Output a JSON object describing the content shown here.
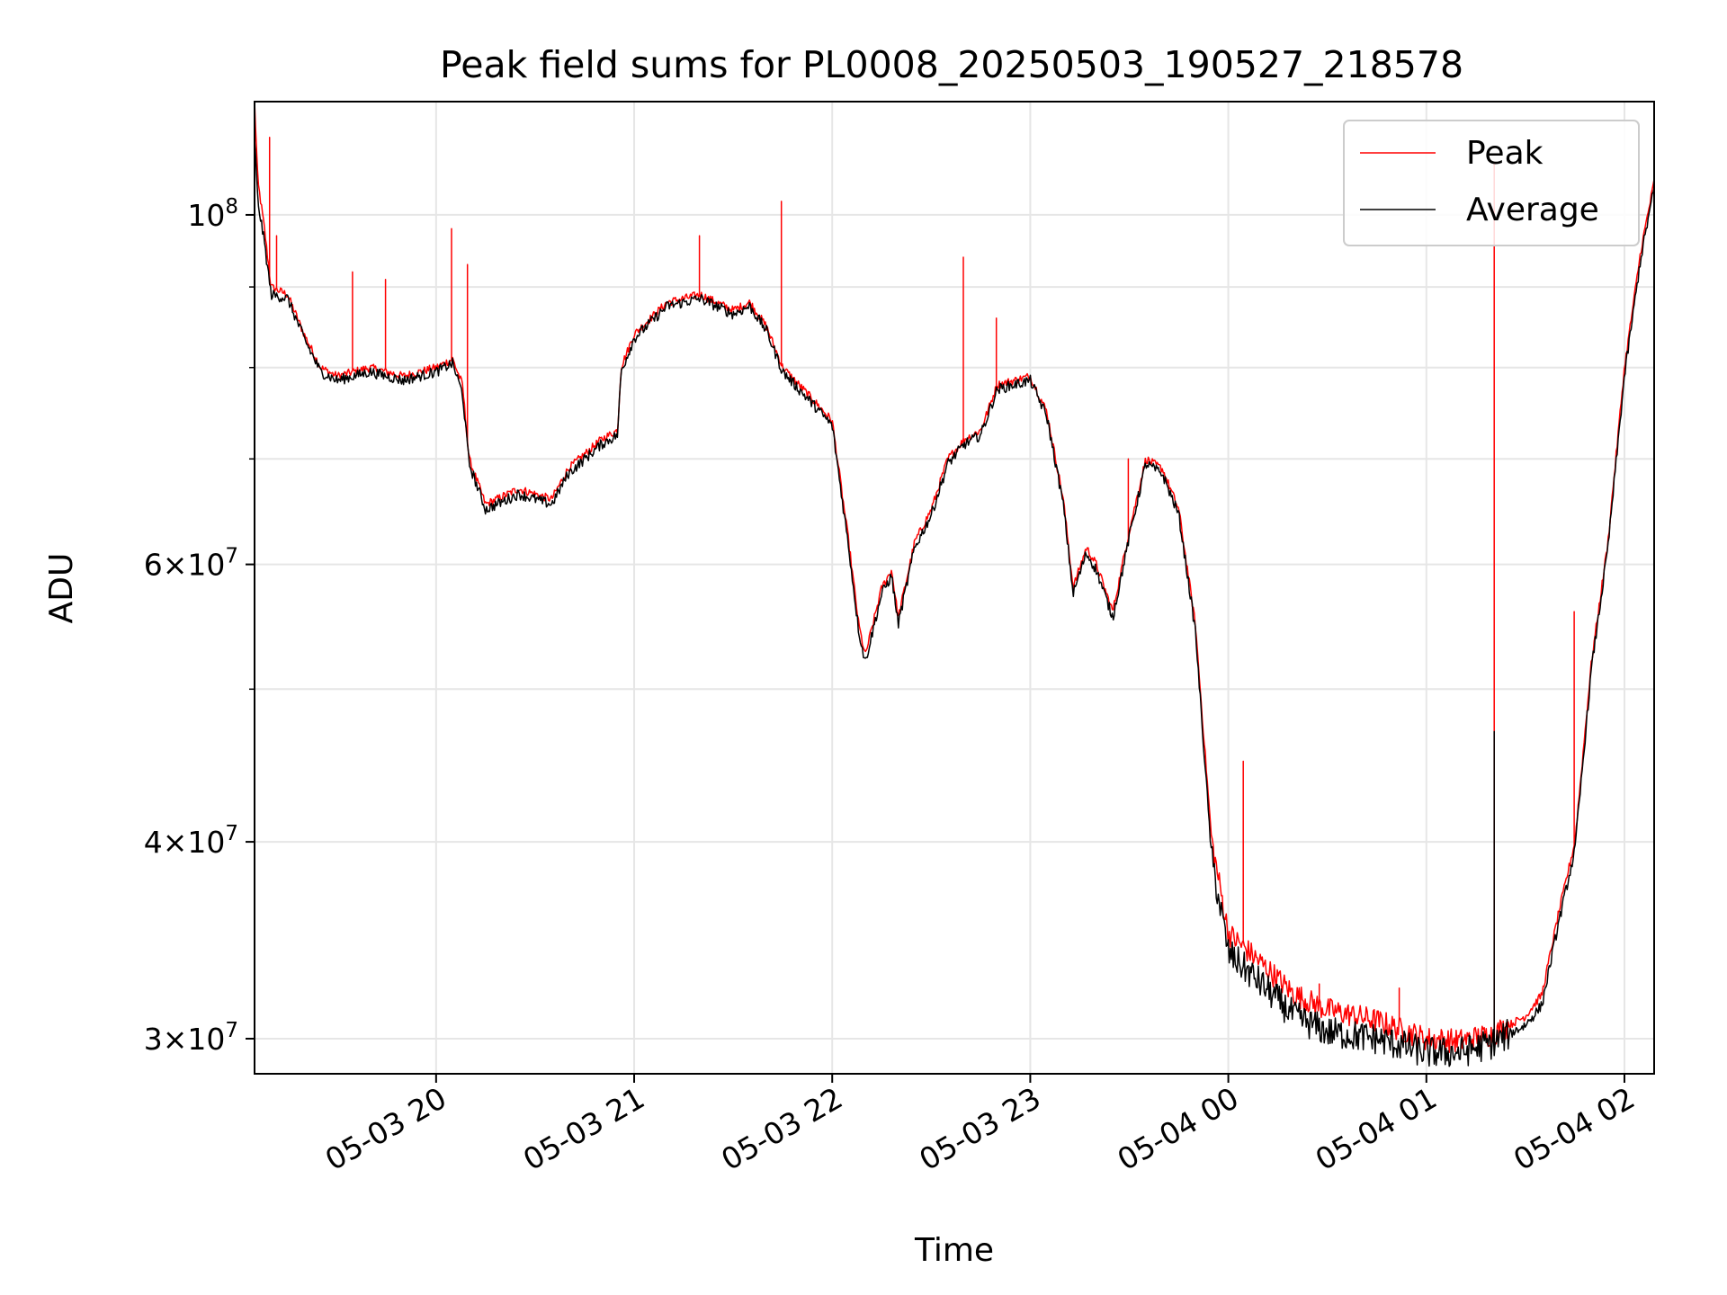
{
  "chart_data": {
    "type": "line",
    "title": "Peak field sums for PL0008_20250503_190527_218578",
    "xlabel": "Time",
    "ylabel": "ADU",
    "yscale": "log",
    "ylim": [
      28500000,
      118000000
    ],
    "xlim": [
      "2025-05-03 19:05",
      "2025-05-04 02:09"
    ],
    "grid": true,
    "legend_position": "upper right",
    "x_ticks": [
      {
        "value": "2025-05-03 20:00",
        "label": "05-03 20"
      },
      {
        "value": "2025-05-03 21:00",
        "label": "05-03 21"
      },
      {
        "value": "2025-05-03 22:00",
        "label": "05-03 22"
      },
      {
        "value": "2025-05-03 23:00",
        "label": "05-03 23"
      },
      {
        "value": "2025-05-04 00:00",
        "label": "05-04 00"
      },
      {
        "value": "2025-05-04 01:00",
        "label": "05-04 01"
      },
      {
        "value": "2025-05-04 02:00",
        "label": "05-04 02"
      }
    ],
    "y_ticks": [
      {
        "value": 30000000,
        "mant": "3",
        "exp": "7"
      },
      {
        "value": 40000000,
        "mant": "4",
        "exp": "7"
      },
      {
        "value": 60000000,
        "mant": "6",
        "exp": "7"
      },
      {
        "value": 100000000,
        "mant": "",
        "exp": "8"
      }
    ],
    "y_minor_ticks": [
      50000000,
      70000000,
      80000000,
      90000000
    ],
    "series": [
      {
        "name": "Peak",
        "color": "#ff0000",
        "points": [
          [
            "2025-05-03 19:05",
            118000000
          ],
          [
            "2025-05-03 19:06",
            105000000
          ],
          [
            "2025-05-03 19:08",
            98000000
          ],
          [
            "2025-05-03 19:10",
            90000000
          ],
          [
            "2025-05-03 19:15",
            89000000
          ],
          [
            "2025-05-03 19:20",
            84000000
          ],
          [
            "2025-05-03 19:25",
            80000000
          ],
          [
            "2025-05-03 19:30",
            79000000
          ],
          [
            "2025-05-03 19:40",
            80000000
          ],
          [
            "2025-05-03 19:50",
            79000000
          ],
          [
            "2025-05-03 20:00",
            80000000
          ],
          [
            "2025-05-03 20:05",
            81000000
          ],
          [
            "2025-05-03 20:08",
            78000000
          ],
          [
            "2025-05-03 20:10",
            70000000
          ],
          [
            "2025-05-03 20:15",
            65500000
          ],
          [
            "2025-05-03 20:25",
            67000000
          ],
          [
            "2025-05-03 20:35",
            66000000
          ],
          [
            "2025-05-03 20:40",
            69000000
          ],
          [
            "2025-05-03 20:50",
            72000000
          ],
          [
            "2025-05-03 20:55",
            73000000
          ],
          [
            "2025-05-03 20:56",
            80000000
          ],
          [
            "2025-05-03 21:00",
            84000000
          ],
          [
            "2025-05-03 21:10",
            88000000
          ],
          [
            "2025-05-03 21:20",
            89000000
          ],
          [
            "2025-05-03 21:30",
            87000000
          ],
          [
            "2025-05-03 21:35",
            88000000
          ],
          [
            "2025-05-03 21:40",
            85000000
          ],
          [
            "2025-05-03 21:45",
            80000000
          ],
          [
            "2025-05-03 21:55",
            76000000
          ],
          [
            "2025-05-03 22:00",
            74000000
          ],
          [
            "2025-05-03 22:05",
            62000000
          ],
          [
            "2025-05-03 22:08",
            55000000
          ],
          [
            "2025-05-03 22:10",
            52500000
          ],
          [
            "2025-05-03 22:15",
            58000000
          ],
          [
            "2025-05-03 22:18",
            59500000
          ],
          [
            "2025-05-03 22:20",
            55500000
          ],
          [
            "2025-05-03 22:25",
            62000000
          ],
          [
            "2025-05-03 22:30",
            65000000
          ],
          [
            "2025-05-03 22:35",
            70000000
          ],
          [
            "2025-05-03 22:40",
            72000000
          ],
          [
            "2025-05-03 22:45",
            73000000
          ],
          [
            "2025-05-03 22:50",
            78000000
          ],
          [
            "2025-05-03 23:00",
            79000000
          ],
          [
            "2025-05-03 23:05",
            75000000
          ],
          [
            "2025-05-03 23:10",
            66000000
          ],
          [
            "2025-05-03 23:13",
            58000000
          ],
          [
            "2025-05-03 23:17",
            61500000
          ],
          [
            "2025-05-03 23:20",
            60000000
          ],
          [
            "2025-05-03 23:25",
            56000000
          ],
          [
            "2025-05-03 23:30",
            63000000
          ],
          [
            "2025-05-03 23:35",
            70000000
          ],
          [
            "2025-05-03 23:40",
            69000000
          ],
          [
            "2025-05-03 23:45",
            65000000
          ],
          [
            "2025-05-03 23:50",
            55000000
          ],
          [
            "2025-05-03 23:55",
            40000000
          ],
          [
            "2025-05-04 00:00",
            35000000
          ],
          [
            "2025-05-04 00:10",
            33500000
          ],
          [
            "2025-05-04 00:20",
            32000000
          ],
          [
            "2025-05-04 00:30",
            31300000
          ],
          [
            "2025-05-04 00:45",
            30800000
          ],
          [
            "2025-05-04 01:00",
            30000000
          ],
          [
            "2025-05-04 01:10",
            29900000
          ],
          [
            "2025-05-04 01:20",
            30200000
          ],
          [
            "2025-05-04 01:30",
            31000000
          ],
          [
            "2025-05-04 01:35",
            32000000
          ],
          [
            "2025-05-04 01:40",
            36000000
          ],
          [
            "2025-05-04 01:45",
            40000000
          ],
          [
            "2025-05-04 01:50",
            52000000
          ],
          [
            "2025-05-04 01:55",
            62000000
          ],
          [
            "2025-05-04 02:00",
            80000000
          ],
          [
            "2025-05-04 02:05",
            95000000
          ],
          [
            "2025-05-04 02:09",
            105000000
          ]
        ],
        "spikes": [
          [
            "2025-05-03 19:10",
            112000000
          ],
          [
            "2025-05-03 19:12",
            97000000
          ],
          [
            "2025-05-03 19:35",
            92000000
          ],
          [
            "2025-05-03 19:45",
            91000000
          ],
          [
            "2025-05-03 20:05",
            98000000
          ],
          [
            "2025-05-03 20:10",
            93000000
          ],
          [
            "2025-05-03 21:20",
            97000000
          ],
          [
            "2025-05-03 21:45",
            102000000
          ],
          [
            "2025-05-03 22:40",
            94000000
          ],
          [
            "2025-05-03 22:50",
            86000000
          ],
          [
            "2025-05-03 23:30",
            70000000
          ],
          [
            "2025-05-04 00:05",
            45000000
          ],
          [
            "2025-05-04 00:28",
            32500000
          ],
          [
            "2025-05-04 00:52",
            32300000
          ],
          [
            "2025-05-04 01:21",
            108000000
          ],
          [
            "2025-05-04 01:45",
            56000000
          ]
        ]
      },
      {
        "name": "Average",
        "color": "#000000",
        "points": [
          [
            "2025-05-03 19:05",
            112000000
          ],
          [
            "2025-05-03 19:06",
            102000000
          ],
          [
            "2025-05-03 19:08",
            96000000
          ],
          [
            "2025-05-03 19:10",
            89000000
          ],
          [
            "2025-05-03 19:15",
            88500000
          ],
          [
            "2025-05-03 19:20",
            83500000
          ],
          [
            "2025-05-03 19:25",
            79500000
          ],
          [
            "2025-05-03 19:30",
            78500000
          ],
          [
            "2025-05-03 19:40",
            79500000
          ],
          [
            "2025-05-03 19:50",
            78500000
          ],
          [
            "2025-05-03 20:00",
            79500000
          ],
          [
            "2025-05-03 20:05",
            80500000
          ],
          [
            "2025-05-03 20:08",
            77000000
          ],
          [
            "2025-05-03 20:10",
            69500000
          ],
          [
            "2025-05-03 20:15",
            65000000
          ],
          [
            "2025-05-03 20:25",
            66500000
          ],
          [
            "2025-05-03 20:35",
            65500000
          ],
          [
            "2025-05-03 20:40",
            68500000
          ],
          [
            "2025-05-03 20:50",
            71500000
          ],
          [
            "2025-05-03 20:55",
            72500000
          ],
          [
            "2025-05-03 20:56",
            79500000
          ],
          [
            "2025-05-03 21:00",
            83500000
          ],
          [
            "2025-05-03 21:10",
            87500000
          ],
          [
            "2025-05-03 21:20",
            88500000
          ],
          [
            "2025-05-03 21:30",
            86500000
          ],
          [
            "2025-05-03 21:35",
            87500000
          ],
          [
            "2025-05-03 21:40",
            84500000
          ],
          [
            "2025-05-03 21:45",
            79500000
          ],
          [
            "2025-05-03 21:55",
            75500000
          ],
          [
            "2025-05-03 22:00",
            73500000
          ],
          [
            "2025-05-03 22:05",
            61500000
          ],
          [
            "2025-05-03 22:08",
            54500000
          ],
          [
            "2025-05-03 22:10",
            52000000
          ],
          [
            "2025-05-03 22:15",
            57500000
          ],
          [
            "2025-05-03 22:18",
            59000000
          ],
          [
            "2025-05-03 22:20",
            55000000
          ],
          [
            "2025-05-03 22:25",
            61500000
          ],
          [
            "2025-05-03 22:30",
            64500000
          ],
          [
            "2025-05-03 22:35",
            69500000
          ],
          [
            "2025-05-03 22:40",
            71500000
          ],
          [
            "2025-05-03 22:45",
            72500000
          ],
          [
            "2025-05-03 22:50",
            77500000
          ],
          [
            "2025-05-03 23:00",
            78500000
          ],
          [
            "2025-05-03 23:05",
            74500000
          ],
          [
            "2025-05-03 23:10",
            65500000
          ],
          [
            "2025-05-03 23:13",
            57500000
          ],
          [
            "2025-05-03 23:17",
            61000000
          ],
          [
            "2025-05-03 23:20",
            59500000
          ],
          [
            "2025-05-03 23:25",
            55500000
          ],
          [
            "2025-05-03 23:30",
            62500000
          ],
          [
            "2025-05-03 23:35",
            69500000
          ],
          [
            "2025-05-03 23:40",
            68500000
          ],
          [
            "2025-05-03 23:45",
            64500000
          ],
          [
            "2025-05-03 23:50",
            54500000
          ],
          [
            "2025-05-03 23:55",
            39000000
          ],
          [
            "2025-05-04 00:00",
            34000000
          ],
          [
            "2025-05-04 00:10",
            32500000
          ],
          [
            "2025-05-04 00:20",
            31000000
          ],
          [
            "2025-05-04 00:30",
            30300000
          ],
          [
            "2025-05-04 00:45",
            30000000
          ],
          [
            "2025-05-04 01:00",
            29400000
          ],
          [
            "2025-05-04 01:10",
            29400000
          ],
          [
            "2025-05-04 01:20",
            29800000
          ],
          [
            "2025-05-04 01:30",
            30600000
          ],
          [
            "2025-05-04 01:35",
            31500000
          ],
          [
            "2025-05-04 01:40",
            35500000
          ],
          [
            "2025-05-04 01:45",
            39500000
          ],
          [
            "2025-05-04 01:50",
            51500000
          ],
          [
            "2025-05-04 01:55",
            61500000
          ],
          [
            "2025-05-04 02:00",
            79000000
          ],
          [
            "2025-05-04 02:05",
            94000000
          ],
          [
            "2025-05-04 02:09",
            104000000
          ]
        ],
        "spikes": [
          [
            "2025-05-04 01:21",
            47000000
          ]
        ]
      }
    ]
  }
}
